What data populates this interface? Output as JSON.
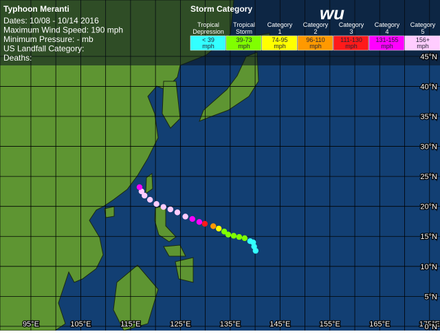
{
  "header": {
    "title": "Typhoon Meranti",
    "lines": [
      "Dates: 10/08 - 10/14 2016",
      "Maximum Wind Speed: 190 mph",
      "Minimum Pressure: - mb",
      "US Landfall Category:",
      "Deaths:"
    ],
    "logo": "wu"
  },
  "legend": {
    "title": "Storm Category",
    "items": [
      {
        "name": [
          "Tropical",
          "Depression"
        ],
        "range": [
          "< 39",
          "mph"
        ],
        "color": "#33ffff"
      },
      {
        "name": [
          "Tropical",
          "Storm"
        ],
        "range": [
          "39-73",
          "mph"
        ],
        "color": "#80ff00"
      },
      {
        "name": [
          "Category",
          "1"
        ],
        "range": [
          "74-95",
          "mph"
        ],
        "color": "#ffff00"
      },
      {
        "name": [
          "Category",
          "2"
        ],
        "range": [
          "96-110",
          "mph"
        ],
        "color": "#ff9900"
      },
      {
        "name": [
          "Category",
          "3"
        ],
        "range": [
          "111-130",
          "mph"
        ],
        "color": "#ff1a1a"
      },
      {
        "name": [
          "Category",
          "4"
        ],
        "range": [
          "131-155",
          "mph"
        ],
        "color": "#ff00ff"
      },
      {
        "name": [
          "Category",
          "5"
        ],
        "range": [
          "156+",
          "mph"
        ],
        "color": "#ffccff"
      }
    ]
  },
  "map": {
    "xlim": [
      88.8,
      177.1
    ],
    "ylim": [
      -0.7,
      54.4
    ],
    "xticks": [
      {
        "value": 95,
        "label": "95°E"
      },
      {
        "value": 105,
        "label": "105°E"
      },
      {
        "value": 115,
        "label": "115°E"
      },
      {
        "value": 125,
        "label": "125°E"
      },
      {
        "value": 135,
        "label": "135°E"
      },
      {
        "value": 145,
        "label": "145°E"
      },
      {
        "value": 155,
        "label": "155°E"
      },
      {
        "value": 165,
        "label": "165°E"
      },
      {
        "value": 175,
        "label": "175°E"
      }
    ],
    "yticks": [
      {
        "value": 0,
        "label": "0°N"
      },
      {
        "value": 5,
        "label": "5°N"
      },
      {
        "value": 10,
        "label": "10°N"
      },
      {
        "value": 15,
        "label": "15°N"
      },
      {
        "value": 20,
        "label": "20°N"
      },
      {
        "value": 25,
        "label": "25°N"
      },
      {
        "value": 30,
        "label": "30°N"
      },
      {
        "value": 35,
        "label": "35°N"
      },
      {
        "value": 40,
        "label": "40°N"
      },
      {
        "value": 45,
        "label": "45°N"
      }
    ],
    "track": {
      "lon": [
        140.1,
        139.8,
        139.6,
        139.0,
        137.9,
        136.8,
        135.7,
        134.6,
        133.8,
        132.7,
        131.6,
        129.9,
        128.8,
        127.4,
        126.0,
        124.4,
        123.0,
        121.6,
        120.2,
        118.9,
        117.8,
        117.2,
        116.8
      ],
      "lat": [
        12.6,
        13.3,
        14.0,
        14.2,
        14.7,
        14.9,
        15.1,
        15.3,
        15.8,
        16.3,
        16.7,
        17.1,
        17.4,
        17.9,
        18.3,
        19.0,
        19.5,
        19.9,
        20.4,
        21.1,
        21.8,
        22.5,
        23.2
      ],
      "colors": [
        "#33ffff",
        "#33ffff",
        "#33ffff",
        "#33ffff",
        "#80ff00",
        "#80ff00",
        "#80ff00",
        "#80ff00",
        "#80ff00",
        "#ffff00",
        "#ff9900",
        "#ff1a1a",
        "#ff00ff",
        "#ff00ff",
        "#ffccff",
        "#ffccff",
        "#ffccff",
        "#ffccff",
        "#ffccff",
        "#ffccff",
        "#ffccff",
        "#ffccff",
        "#ff00ff"
      ]
    }
  }
}
